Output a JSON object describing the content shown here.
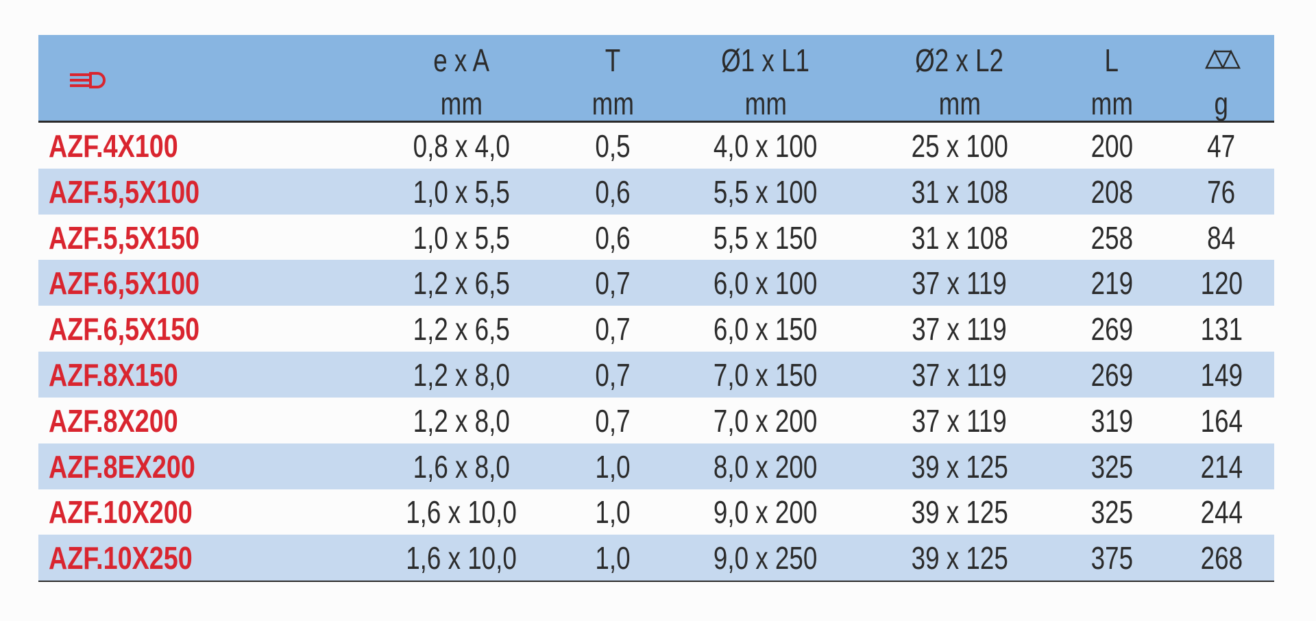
{
  "header": {
    "columns": [
      {
        "line1": "e x A",
        "line2": "mm"
      },
      {
        "line1": "T",
        "line2": "mm"
      },
      {
        "line1": "Ø1 x L1",
        "line2": "mm"
      },
      {
        "line1": "Ø2 x L2",
        "line2": "mm"
      },
      {
        "line1": "L",
        "line2": "mm"
      }
    ],
    "weight_unit": "g"
  },
  "table": {
    "rows": [
      [
        "AZF.4X100",
        "0,8 x 4,0",
        "0,5",
        "4,0 x 100",
        "25 x 100",
        "200",
        "47"
      ],
      [
        "AZF.5,5X100",
        "1,0 x 5,5",
        "0,6",
        "5,5 x 100",
        "31 x 108",
        "208",
        "76"
      ],
      [
        "AZF.5,5X150",
        "1,0 x 5,5",
        "0,6",
        "5,5 x 150",
        "31 x 108",
        "258",
        "84"
      ],
      [
        "AZF.6,5X100",
        "1,2 x 6,5",
        "0,7",
        "6,0 x 100",
        "37 x 119",
        "219",
        "120"
      ],
      [
        "AZF.6,5X150",
        "1,2 x 6,5",
        "0,7",
        "6,0 x 150",
        "37 x 119",
        "269",
        "131"
      ],
      [
        "AZF.8X150",
        "1,2 x 8,0",
        "0,7",
        "7,0 x 150",
        "37 x 119",
        "269",
        "149"
      ],
      [
        "AZF.8X200",
        "1,2 x 8,0",
        "0,7",
        "7,0 x 200",
        "37 x 119",
        "319",
        "164"
      ],
      [
        "AZF.8EX200",
        "1,6 x 8,0",
        "1,0",
        "8,0 x 200",
        "39 x 125",
        "325",
        "214"
      ],
      [
        "AZF.10X200",
        "1,6 x 10,0",
        "1,0",
        "9,0 x 200",
        "39 x 125",
        "325",
        "244"
      ],
      [
        "AZF.10X250",
        "1,6 x 10,0",
        "1,0",
        "9,0 x 250",
        "39 x 125",
        "375",
        "268"
      ]
    ]
  }
}
